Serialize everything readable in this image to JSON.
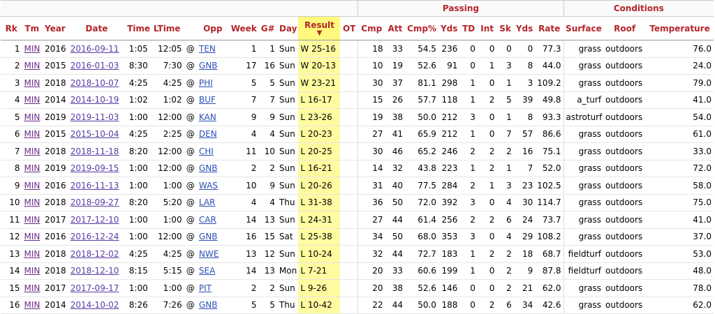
{
  "header": {
    "over": {
      "passing": "Passing",
      "conditions": "Conditions"
    },
    "cols": [
      "Rk",
      "Tm",
      "Year",
      "Date",
      "Time",
      "LTime",
      "",
      "Opp",
      "Week",
      "G#",
      "Day",
      "Result",
      "OT",
      "Cmp",
      "Att",
      "Cmp%",
      "Yds",
      "TD",
      "Int",
      "Sk",
      "Yds",
      "Rate",
      "Surface",
      "Roof",
      "Temperature"
    ],
    "sort_arrow": "▼"
  },
  "rows": [
    [
      "1",
      "MIN",
      "2016",
      "2016-09-11",
      "1:05",
      "12:05",
      "@",
      "TEN",
      "1",
      "1",
      "Sun",
      "W 25-16",
      "",
      "18",
      "33",
      "54.5",
      "236",
      "0",
      "0",
      "0",
      "0",
      "77.3",
      "grass",
      "outdoors",
      "76.0"
    ],
    [
      "2",
      "MIN",
      "2015",
      "2016-01-03",
      "8:30",
      "7:30",
      "@",
      "GNB",
      "17",
      "16",
      "Sun",
      "W 20-13",
      "",
      "10",
      "19",
      "52.6",
      "91",
      "0",
      "1",
      "3",
      "8",
      "44.0",
      "grass",
      "outdoors",
      "24.0"
    ],
    [
      "3",
      "MIN",
      "2018",
      "2018-10-07",
      "4:25",
      "4:25",
      "@",
      "PHI",
      "5",
      "5",
      "Sun",
      "W 23-21",
      "",
      "30",
      "37",
      "81.1",
      "298",
      "1",
      "0",
      "1",
      "3",
      "109.2",
      "grass",
      "outdoors",
      "79.0"
    ],
    [
      "4",
      "MIN",
      "2014",
      "2014-10-19",
      "1:02",
      "1:02",
      "@",
      "BUF",
      "7",
      "7",
      "Sun",
      "L 16-17",
      "",
      "15",
      "26",
      "57.7",
      "118",
      "1",
      "2",
      "5",
      "39",
      "49.8",
      "a_turf",
      "outdoors",
      "41.0"
    ],
    [
      "5",
      "MIN",
      "2019",
      "2019-11-03",
      "1:00",
      "12:00",
      "@",
      "KAN",
      "9",
      "9",
      "Sun",
      "L 23-26",
      "",
      "19",
      "38",
      "50.0",
      "212",
      "3",
      "0",
      "1",
      "8",
      "93.3",
      "astroturf",
      "outdoors",
      "54.0"
    ],
    [
      "6",
      "MIN",
      "2015",
      "2015-10-04",
      "4:25",
      "2:25",
      "@",
      "DEN",
      "4",
      "4",
      "Sun",
      "L 20-23",
      "",
      "27",
      "41",
      "65.9",
      "212",
      "1",
      "0",
      "7",
      "57",
      "86.6",
      "grass",
      "outdoors",
      "61.0"
    ],
    [
      "7",
      "MIN",
      "2018",
      "2018-11-18",
      "8:20",
      "12:00",
      "@",
      "CHI",
      "11",
      "10",
      "Sun",
      "L 20-25",
      "",
      "30",
      "46",
      "65.2",
      "246",
      "2",
      "2",
      "2",
      "16",
      "75.1",
      "grass",
      "outdoors",
      "33.0"
    ],
    [
      "8",
      "MIN",
      "2019",
      "2019-09-15",
      "1:00",
      "12:00",
      "@",
      "GNB",
      "2",
      "2",
      "Sun",
      "L 16-21",
      "",
      "14",
      "32",
      "43.8",
      "223",
      "1",
      "2",
      "1",
      "7",
      "52.0",
      "grass",
      "outdoors",
      "72.0"
    ],
    [
      "9",
      "MIN",
      "2016",
      "2016-11-13",
      "1:00",
      "1:00",
      "@",
      "WAS",
      "10",
      "9",
      "Sun",
      "L 20-26",
      "",
      "31",
      "40",
      "77.5",
      "284",
      "2",
      "1",
      "3",
      "23",
      "102.5",
      "grass",
      "outdoors",
      "58.0"
    ],
    [
      "10",
      "MIN",
      "2018",
      "2018-09-27",
      "8:20",
      "5:20",
      "@",
      "LAR",
      "4",
      "4",
      "Thu",
      "L 31-38",
      "",
      "36",
      "50",
      "72.0",
      "392",
      "3",
      "0",
      "4",
      "30",
      "114.7",
      "grass",
      "outdoors",
      "75.0"
    ],
    [
      "11",
      "MIN",
      "2017",
      "2017-12-10",
      "1:00",
      "1:00",
      "@",
      "CAR",
      "14",
      "13",
      "Sun",
      "L 24-31",
      "",
      "27",
      "44",
      "61.4",
      "256",
      "2",
      "2",
      "6",
      "24",
      "73.7",
      "grass",
      "outdoors",
      "41.0"
    ],
    [
      "12",
      "MIN",
      "2016",
      "2016-12-24",
      "1:00",
      "12:00",
      "@",
      "GNB",
      "16",
      "15",
      "Sat",
      "L 25-38",
      "",
      "34",
      "50",
      "68.0",
      "353",
      "3",
      "0",
      "4",
      "29",
      "108.2",
      "grass",
      "outdoors",
      "37.0"
    ],
    [
      "13",
      "MIN",
      "2018",
      "2018-12-02",
      "4:25",
      "4:25",
      "@",
      "NWE",
      "13",
      "12",
      "Sun",
      "L 10-24",
      "",
      "32",
      "44",
      "72.7",
      "183",
      "1",
      "2",
      "2",
      "18",
      "68.7",
      "fieldturf",
      "outdoors",
      "53.0"
    ],
    [
      "14",
      "MIN",
      "2018",
      "2018-12-10",
      "8:15",
      "5:15",
      "@",
      "SEA",
      "14",
      "13",
      "Mon",
      "L 7-21",
      "",
      "20",
      "33",
      "60.6",
      "199",
      "1",
      "0",
      "2",
      "9",
      "87.8",
      "fieldturf",
      "outdoors",
      "48.0"
    ],
    [
      "15",
      "MIN",
      "2017",
      "2017-09-17",
      "1:00",
      "1:00",
      "@",
      "PIT",
      "2",
      "2",
      "Sun",
      "L 9-26",
      "",
      "20",
      "38",
      "52.6",
      "146",
      "0",
      "0",
      "2",
      "21",
      "62.0",
      "grass",
      "outdoors",
      "78.0"
    ],
    [
      "16",
      "MIN",
      "2014",
      "2014-10-02",
      "8:26",
      "7:26",
      "@",
      "GNB",
      "5",
      "5",
      "Thu",
      "L 10-42",
      "",
      "22",
      "44",
      "50.0",
      "188",
      "0",
      "2",
      "6",
      "34",
      "42.6",
      "grass",
      "outdoors",
      "62.0"
    ]
  ]
}
